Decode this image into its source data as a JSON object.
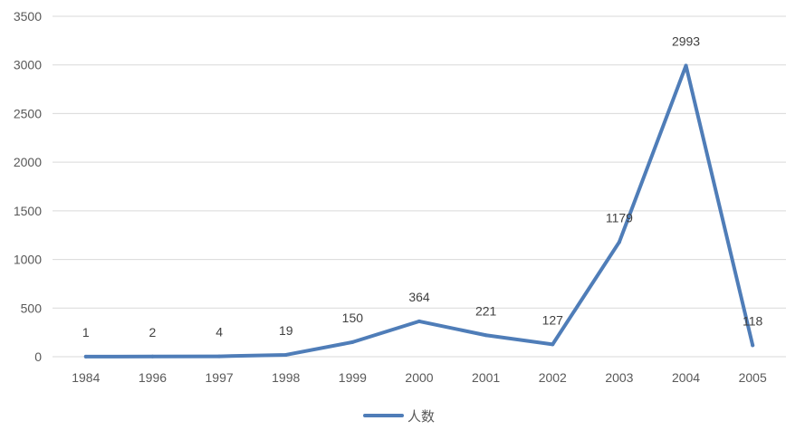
{
  "chart_data": {
    "type": "line",
    "categories": [
      "1984",
      "1996",
      "1997",
      "1998",
      "1999",
      "2000",
      "2001",
      "2002",
      "2003",
      "2004",
      "2005"
    ],
    "series": [
      {
        "name": "人数",
        "values": [
          1,
          2,
          4,
          19,
          150,
          364,
          221,
          127,
          1179,
          2993,
          118
        ],
        "color": "#4F7DB8"
      }
    ],
    "ylim": [
      0,
      3500
    ],
    "yticks": [
      0,
      500,
      1000,
      1500,
      2000,
      2500,
      3000,
      3500
    ],
    "grid": true,
    "legend": "bottom",
    "data_labels": true,
    "gridline_color": "#D9D9D9"
  }
}
